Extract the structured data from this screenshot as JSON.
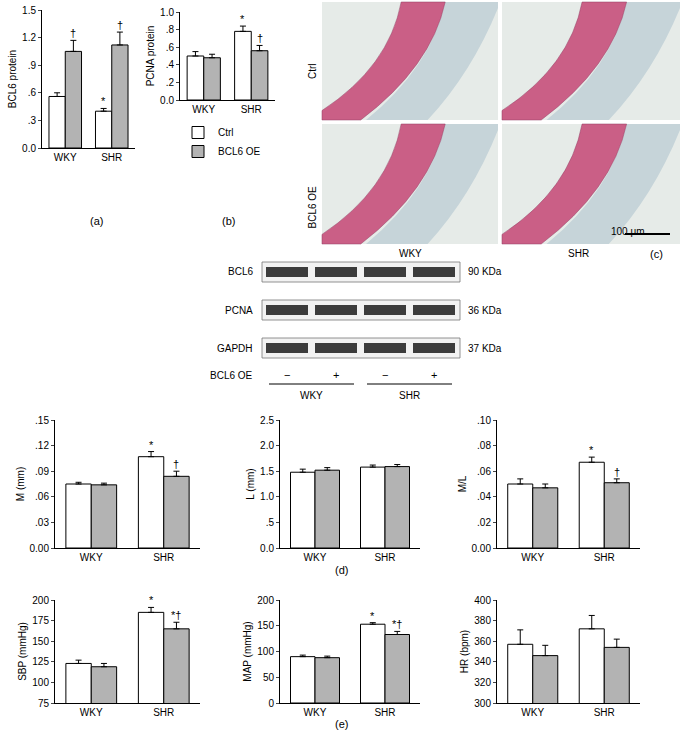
{
  "chart_data": [
    {
      "type": "bar",
      "title": "(a)",
      "y_label": "BCL6 protein",
      "categories": [
        "WKY",
        "SHR"
      ],
      "series": [
        {
          "name": "Ctrl",
          "color": "#ffffff",
          "values": [
            0.56,
            0.4
          ],
          "errors": [
            0.04,
            0.03
          ]
        },
        {
          "name": "BCL6 OE",
          "color": "#b3b3b3",
          "values": [
            1.05,
            1.12
          ],
          "errors": [
            0.12,
            0.14
          ]
        }
      ],
      "annotations": [
        {
          "category": "WKY",
          "series": "BCL6 OE",
          "text": "†"
        },
        {
          "category": "SHR",
          "series": "Ctrl",
          "text": "*"
        },
        {
          "category": "SHR",
          "series": "BCL6 OE",
          "text": "†"
        }
      ],
      "ylim": [
        0,
        1.5
      ],
      "yticks": [
        {
          "value": 0,
          "label": "0.0"
        },
        {
          "value": 0.3,
          "label": ".3"
        },
        {
          "value": 0.6,
          "label": ".6"
        },
        {
          "value": 0.9,
          "label": ".9"
        },
        1.2,
        1.5
      ],
      "grid": false
    },
    {
      "type": "bar",
      "title": "(b)",
      "y_label": "PCNA protein",
      "categories": [
        "WKY",
        "SHR"
      ],
      "series": [
        {
          "name": "Ctrl",
          "color": "#ffffff",
          "values": [
            0.5,
            0.78
          ],
          "errors": [
            0.05,
            0.06
          ]
        },
        {
          "name": "BCL6 OE",
          "color": "#b3b3b3",
          "values": [
            0.48,
            0.56
          ],
          "errors": [
            0.04,
            0.06
          ]
        }
      ],
      "annotations": [
        {
          "category": "SHR",
          "series": "Ctrl",
          "text": "*"
        },
        {
          "category": "SHR",
          "series": "BCL6 OE",
          "text": "†"
        }
      ],
      "ylim": [
        0,
        1.0
      ],
      "yticks": [
        {
          "value": 0,
          "label": "0.0"
        },
        {
          "value": 0.2,
          "label": ".2"
        },
        {
          "value": 0.4,
          "label": ".4"
        },
        {
          "value": 0.6,
          "label": ".6"
        },
        {
          "value": 0.8,
          "label": ".8"
        },
        {
          "value": 1.0,
          "label": "1.0"
        }
      ],
      "grid": false,
      "legend": "bottom left"
    },
    {
      "type": "bar",
      "title": "(d)",
      "y_label": "M (mm)",
      "categories": [
        "WKY",
        "SHR"
      ],
      "series": [
        {
          "name": "Ctrl",
          "color": "#ffffff",
          "values": [
            0.075,
            0.107
          ],
          "errors": [
            0.002,
            0.006
          ]
        },
        {
          "name": "BCL6 OE",
          "color": "#b3b3b3",
          "values": [
            0.074,
            0.084
          ],
          "errors": [
            0.002,
            0.006
          ]
        }
      ],
      "annotations": [
        {
          "category": "SHR",
          "series": "Ctrl",
          "text": "*"
        },
        {
          "category": "SHR",
          "series": "BCL6 OE",
          "text": "†"
        }
      ],
      "ylim": [
        0,
        0.15
      ],
      "yticks": [
        {
          "value": 0,
          "label": "0.00"
        },
        {
          "value": 0.03,
          "label": ".03"
        },
        {
          "value": 0.06,
          "label": ".06"
        },
        {
          "value": 0.09,
          "label": ".09"
        },
        {
          "value": 0.12,
          "label": ".12"
        },
        {
          "value": 0.15,
          "label": ".15"
        }
      ],
      "grid": false
    },
    {
      "type": "bar",
      "title": "(d)",
      "y_label": "L (mm)",
      "categories": [
        "WKY",
        "SHR"
      ],
      "series": [
        {
          "name": "Ctrl",
          "color": "#ffffff",
          "values": [
            1.48,
            1.58
          ],
          "errors": [
            0.06,
            0.04
          ]
        },
        {
          "name": "BCL6 OE",
          "color": "#b3b3b3",
          "values": [
            1.52,
            1.59
          ],
          "errors": [
            0.05,
            0.04
          ]
        }
      ],
      "ylim": [
        0,
        2.5
      ],
      "yticks": [
        {
          "value": 0,
          "label": "0.0"
        },
        {
          "value": 0.5,
          "label": ".5"
        },
        {
          "value": 1.0,
          "label": "1.0"
        },
        1.5,
        {
          "value": 2.0,
          "label": "2.0"
        },
        2.5
      ],
      "grid": false
    },
    {
      "type": "bar",
      "title": "(d)",
      "y_label": "M/L",
      "categories": [
        "WKY",
        "SHR"
      ],
      "series": [
        {
          "name": "Ctrl",
          "color": "#ffffff",
          "values": [
            0.05,
            0.067
          ],
          "errors": [
            0.004,
            0.004
          ]
        },
        {
          "name": "BCL6 OE",
          "color": "#b3b3b3",
          "values": [
            0.047,
            0.051
          ],
          "errors": [
            0.003,
            0.003
          ]
        }
      ],
      "annotations": [
        {
          "category": "SHR",
          "series": "Ctrl",
          "text": "*"
        },
        {
          "category": "SHR",
          "series": "BCL6 OE",
          "text": "†"
        }
      ],
      "ylim": [
        0,
        0.1
      ],
      "yticks": [
        {
          "value": 0,
          "label": "0.00"
        },
        {
          "value": 0.02,
          "label": ".02"
        },
        {
          "value": 0.04,
          "label": ".04"
        },
        {
          "value": 0.06,
          "label": ".06"
        },
        {
          "value": 0.08,
          "label": ".08"
        },
        {
          "value": 0.1,
          "label": ".10"
        }
      ],
      "grid": false
    },
    {
      "type": "bar",
      "title": "(e)",
      "y_label": "SBP (mmHg)",
      "categories": [
        "WKY",
        "SHR"
      ],
      "series": [
        {
          "name": "Ctrl",
          "color": "#ffffff",
          "values": [
            123,
            185
          ],
          "errors": [
            4,
            6
          ]
        },
        {
          "name": "BCL6 OE",
          "color": "#b3b3b3",
          "values": [
            119,
            165
          ],
          "errors": [
            4,
            8
          ]
        }
      ],
      "annotations": [
        {
          "category": "SHR",
          "series": "Ctrl",
          "text": "*"
        },
        {
          "category": "SHR",
          "series": "BCL6 OE",
          "text": "*†"
        }
      ],
      "ylim": [
        75,
        200
      ],
      "yticks": [
        75,
        100,
        125,
        150,
        175,
        200
      ],
      "grid": false
    },
    {
      "type": "bar",
      "title": "(e)",
      "y_label": "MAP (mmHg)",
      "categories": [
        "WKY",
        "SHR"
      ],
      "series": [
        {
          "name": "Ctrl",
          "color": "#ffffff",
          "values": [
            90,
            153
          ],
          "errors": [
            3,
            3
          ]
        },
        {
          "name": "BCL6 OE",
          "color": "#b3b3b3",
          "values": [
            88,
            133
          ],
          "errors": [
            3,
            6
          ]
        }
      ],
      "annotations": [
        {
          "category": "SHR",
          "series": "Ctrl",
          "text": "*"
        },
        {
          "category": "SHR",
          "series": "BCL6 OE",
          "text": "*†"
        }
      ],
      "ylim": [
        0,
        200
      ],
      "yticks": [
        0,
        50,
        100,
        150,
        200
      ],
      "grid": false
    },
    {
      "type": "bar",
      "title": "(e)",
      "y_label": "HR (bpm)",
      "categories": [
        "WKY",
        "SHR"
      ],
      "series": [
        {
          "name": "Ctrl",
          "color": "#ffffff",
          "values": [
            357,
            372
          ],
          "errors": [
            14,
            13
          ]
        },
        {
          "name": "BCL6 OE",
          "color": "#b3b3b3",
          "values": [
            346,
            354
          ],
          "errors": [
            10,
            8
          ]
        }
      ],
      "ylim": [
        300,
        400
      ],
      "yticks": [
        300,
        320,
        340,
        360,
        380,
        400
      ],
      "grid": false
    }
  ],
  "histology": {
    "title": "(c)",
    "rows": [
      "Ctrl",
      "BCL6 OE"
    ],
    "columns": [
      "WKY",
      "SHR"
    ],
    "scale_bar": "100 μm"
  },
  "blot": {
    "bands": [
      {
        "protein": "BCL6",
        "size": "90 KDa"
      },
      {
        "protein": "PCNA",
        "size": "36 KDa"
      },
      {
        "protein": "GAPDH",
        "size": "37 KDa"
      }
    ],
    "treatment": "BCL6 OE",
    "lanes": [
      "−",
      "+",
      "−",
      "+"
    ],
    "groups": [
      "WKY",
      "SHR"
    ]
  }
}
